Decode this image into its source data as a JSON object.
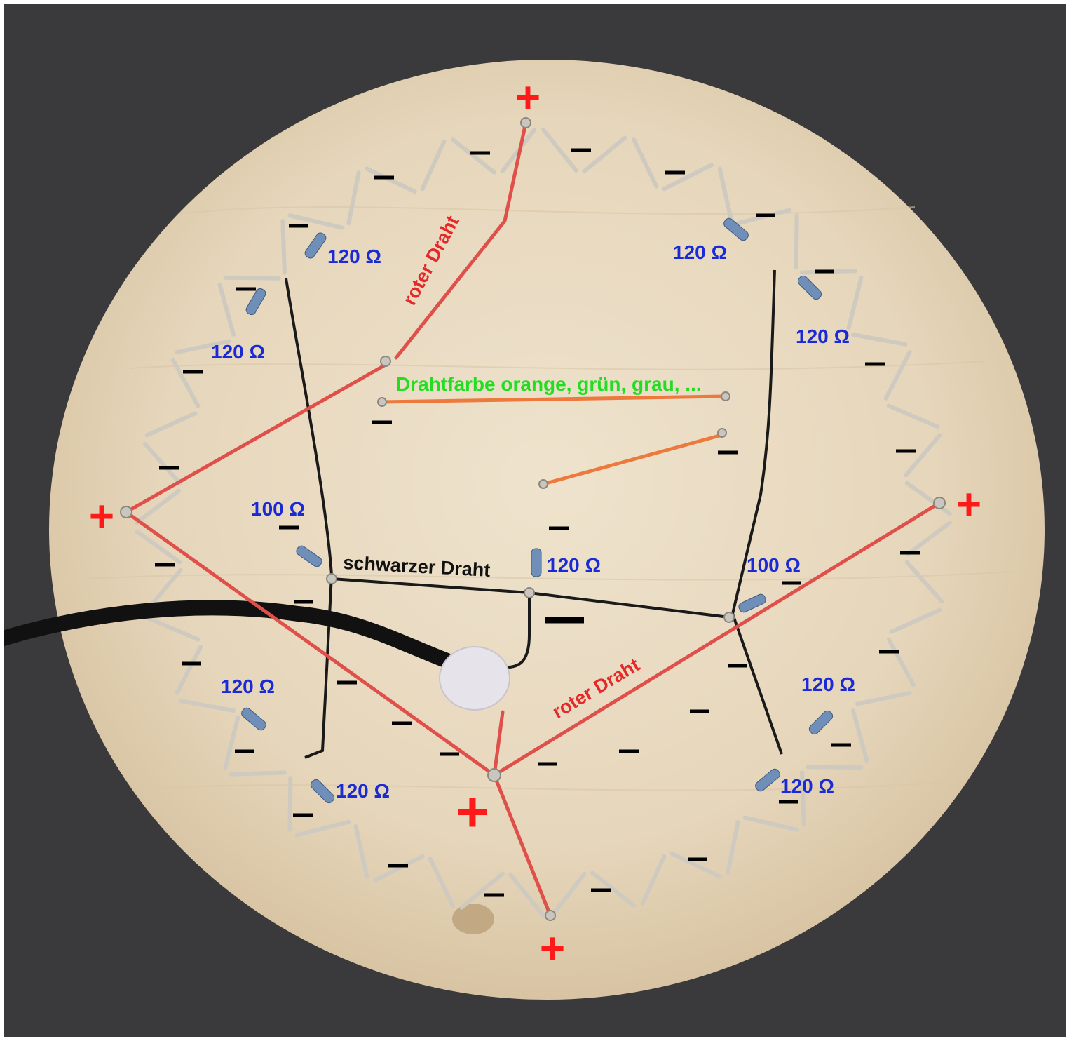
{
  "labels": {
    "red_wire_top": "roter Draht",
    "red_wire_bottom": "roter Draht",
    "black_wire": "schwarzer Draht",
    "wire_color_note": "Drahtfarbe orange, grün, grau, ...",
    "plus": "+",
    "minus": "−",
    "r120": "120 Ω",
    "r100": "100 Ω"
  },
  "colors": {
    "background": "#3a3a3c",
    "board_wood": "#eadcc4",
    "red_wire": "#e0504a",
    "orange_wire": "#ec7a3c",
    "black_wire": "#1a1a1a",
    "plus_marker": "#ff1a1a",
    "resistance_label": "#1a2bd6",
    "note_label": "#22dd22",
    "minus_marker": "#000000",
    "led_lead": "#cfcac0",
    "resistor_body": "#6f8fb8"
  },
  "markers": {
    "plus_count": 5,
    "minus_count": 50,
    "resistor_count": 10
  }
}
